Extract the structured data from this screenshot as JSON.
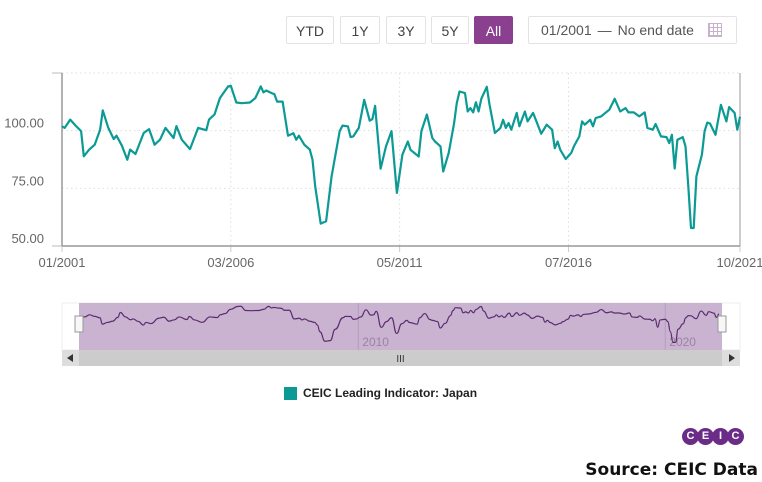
{
  "range_buttons": [
    {
      "label": "YTD",
      "active": false
    },
    {
      "label": "1Y",
      "active": false
    },
    {
      "label": "3Y",
      "active": false
    },
    {
      "label": "5Y",
      "active": false
    },
    {
      "label": "All",
      "active": true
    }
  ],
  "date_range": {
    "start": "01/2001",
    "separator": "—",
    "end": "No end date",
    "icon": "calendar-icon"
  },
  "legend": {
    "label": "CEIC Leading Indicator: Japan",
    "color": "#0b9a94"
  },
  "navigator": {
    "labels": [
      "2010",
      "2020"
    ],
    "line_color": "#5b2a6e",
    "mask_color": "#c9b3d1"
  },
  "logo": {
    "letters": [
      "C",
      "E",
      "I",
      "C"
    ]
  },
  "source": "Source: CEIC Data",
  "chart_data": {
    "type": "line",
    "title": "",
    "xlabel": "",
    "ylabel": "",
    "ylim": [
      50,
      125
    ],
    "yticks": [
      "50.00",
      "75.00",
      "100.00"
    ],
    "ytick_values": [
      50,
      75,
      100
    ],
    "xticks": [
      "01/2001",
      "03/2006",
      "05/2011",
      "07/2016",
      "10/2021"
    ],
    "xlim": [
      "2001-01",
      "2021-10"
    ],
    "grid": true,
    "legend_position": "bottom",
    "series": [
      {
        "name": "CEIC Leading Indicator: Japan",
        "color": "#0b9a94",
        "points": [
          [
            "2001-01",
            101.9
          ],
          [
            "2001-02",
            101.2
          ],
          [
            "2001-04",
            104.8
          ],
          [
            "2001-06",
            102.2
          ],
          [
            "2001-08",
            99.8
          ],
          [
            "2001-09",
            88.9
          ],
          [
            "2001-11",
            91.8
          ],
          [
            "2002-01",
            93.9
          ],
          [
            "2002-03",
            100.4
          ],
          [
            "2002-04",
            108.8
          ],
          [
            "2002-06",
            101.2
          ],
          [
            "2002-08",
            96.4
          ],
          [
            "2002-09",
            97.8
          ],
          [
            "2002-11",
            93.5
          ],
          [
            "2003-01",
            87.4
          ],
          [
            "2003-02",
            91.8
          ],
          [
            "2003-04",
            89.9
          ],
          [
            "2003-07",
            99.0
          ],
          [
            "2003-09",
            100.7
          ],
          [
            "2003-11",
            93.9
          ],
          [
            "2004-01",
            96.1
          ],
          [
            "2004-03",
            101.2
          ],
          [
            "2004-06",
            96.8
          ],
          [
            "2004-07",
            102.0
          ],
          [
            "2004-09",
            96.1
          ],
          [
            "2004-12",
            92.0
          ],
          [
            "2005-03",
            101.2
          ],
          [
            "2005-06",
            100.2
          ],
          [
            "2005-07",
            104.8
          ],
          [
            "2005-09",
            107.0
          ],
          [
            "2005-11",
            114.1
          ],
          [
            "2006-02",
            119.2
          ],
          [
            "2006-03",
            119.5
          ],
          [
            "2006-05",
            112.2
          ],
          [
            "2006-07",
            111.9
          ],
          [
            "2006-10",
            112.2
          ],
          [
            "2006-12",
            114.1
          ],
          [
            "2007-02",
            119.2
          ],
          [
            "2007-03",
            116.6
          ],
          [
            "2007-04",
            117.4
          ],
          [
            "2007-06",
            116.3
          ],
          [
            "2007-07",
            115.8
          ],
          [
            "2007-08",
            112.6
          ],
          [
            "2007-10",
            112.6
          ],
          [
            "2007-12",
            97.8
          ],
          [
            "2008-02",
            98.9
          ],
          [
            "2008-03",
            96.1
          ],
          [
            "2008-04",
            97.8
          ],
          [
            "2008-06",
            93.9
          ],
          [
            "2008-08",
            91.8
          ],
          [
            "2008-09",
            87.4
          ],
          [
            "2008-10",
            75.9
          ],
          [
            "2008-12",
            59.7
          ],
          [
            "2009-02",
            60.7
          ],
          [
            "2009-04",
            80.2
          ],
          [
            "2009-07",
            99.8
          ],
          [
            "2009-08",
            102.2
          ],
          [
            "2009-10",
            101.9
          ],
          [
            "2009-11",
            97.2
          ],
          [
            "2009-12",
            97.5
          ],
          [
            "2010-02",
            101.2
          ],
          [
            "2010-04",
            113.4
          ],
          [
            "2010-06",
            104.3
          ],
          [
            "2010-07",
            105.0
          ],
          [
            "2010-08",
            110.8
          ],
          [
            "2010-10",
            83.5
          ],
          [
            "2010-12",
            93.2
          ],
          [
            "2011-02",
            99.8
          ],
          [
            "2011-04",
            73.0
          ],
          [
            "2011-06",
            89.6
          ],
          [
            "2011-08",
            95.3
          ],
          [
            "2011-09",
            91.7
          ],
          [
            "2011-12",
            88.8
          ],
          [
            "2012-01",
            99.8
          ],
          [
            "2012-03",
            107.0
          ],
          [
            "2012-05",
            96.8
          ],
          [
            "2012-06",
            95.3
          ],
          [
            "2012-08",
            93.2
          ],
          [
            "2012-09",
            82.3
          ],
          [
            "2012-11",
            90.3
          ],
          [
            "2013-01",
            103.3
          ],
          [
            "2013-02",
            112.0
          ],
          [
            "2013-03",
            117.0
          ],
          [
            "2013-05",
            116.3
          ],
          [
            "2013-06",
            108.3
          ],
          [
            "2013-07",
            109.8
          ],
          [
            "2013-08",
            107.9
          ],
          [
            "2013-09",
            112.3
          ],
          [
            "2013-10",
            108.3
          ],
          [
            "2013-11",
            113.8
          ],
          [
            "2014-01",
            119.0
          ],
          [
            "2014-02",
            111.4
          ],
          [
            "2014-04",
            99.0
          ],
          [
            "2014-06",
            101.2
          ],
          [
            "2014-07",
            104.7
          ],
          [
            "2014-08",
            101.2
          ],
          [
            "2014-09",
            103.3
          ],
          [
            "2014-10",
            100.4
          ],
          [
            "2014-12",
            107.7
          ],
          [
            "2015-01",
            101.9
          ],
          [
            "2015-03",
            108.3
          ],
          [
            "2015-04",
            104.0
          ],
          [
            "2015-06",
            107.7
          ],
          [
            "2015-07",
            104.7
          ],
          [
            "2015-09",
            98.7
          ],
          [
            "2015-11",
            102.6
          ],
          [
            "2016-01",
            100.4
          ],
          [
            "2016-02",
            92.4
          ],
          [
            "2016-03",
            95.3
          ],
          [
            "2016-04",
            91.7
          ],
          [
            "2016-06",
            87.7
          ],
          [
            "2016-08",
            90.3
          ],
          [
            "2016-09",
            93.2
          ],
          [
            "2016-11",
            97.5
          ],
          [
            "2016-12",
            104.0
          ],
          [
            "2017-01",
            102.6
          ],
          [
            "2017-03",
            104.7
          ],
          [
            "2017-04",
            101.9
          ],
          [
            "2017-05",
            105.5
          ],
          [
            "2017-07",
            106.2
          ],
          [
            "2017-10",
            109.1
          ],
          [
            "2017-12",
            113.8
          ],
          [
            "2018-02",
            108.3
          ],
          [
            "2018-04",
            109.8
          ],
          [
            "2018-05",
            107.9
          ],
          [
            "2018-07",
            107.9
          ],
          [
            "2018-09",
            106.2
          ],
          [
            "2018-11",
            107.9
          ],
          [
            "2018-12",
            101.2
          ],
          [
            "2019-02",
            100.4
          ],
          [
            "2019-03",
            102.9
          ],
          [
            "2019-05",
            97.5
          ],
          [
            "2019-07",
            97.2
          ],
          [
            "2019-08",
            94.6
          ],
          [
            "2019-09",
            98.2
          ],
          [
            "2019-10",
            83.6
          ],
          [
            "2019-11",
            96.1
          ],
          [
            "2020-01",
            97.2
          ],
          [
            "2020-02",
            93.2
          ],
          [
            "2020-03",
            75.9
          ],
          [
            "2020-04",
            57.8
          ],
          [
            "2020-05",
            57.8
          ],
          [
            "2020-06",
            80.2
          ],
          [
            "2020-08",
            89.6
          ],
          [
            "2020-09",
            99.8
          ],
          [
            "2020-10",
            103.5
          ],
          [
            "2020-11",
            103.1
          ],
          [
            "2021-01",
            98.2
          ],
          [
            "2021-03",
            111.2
          ],
          [
            "2021-05",
            104.0
          ],
          [
            "2021-06",
            110.2
          ],
          [
            "2021-08",
            107.7
          ],
          [
            "2021-09",
            100.4
          ],
          [
            "2021-10",
            106.0
          ]
        ]
      }
    ]
  }
}
